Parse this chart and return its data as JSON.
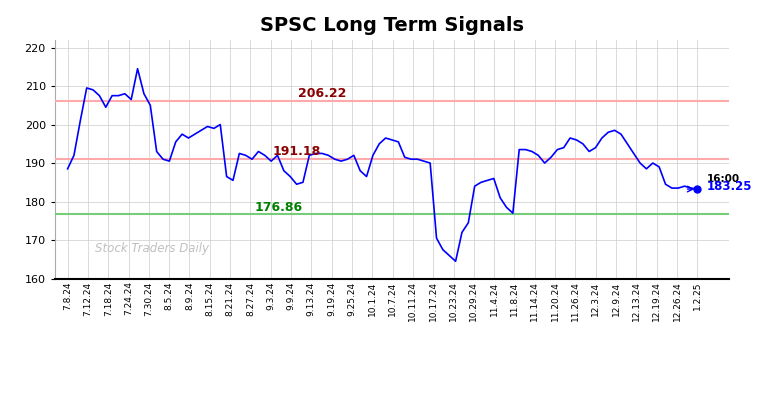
{
  "title": "SPSC Long Term Signals",
  "title_fontsize": 14,
  "title_fontweight": "bold",
  "ylim": [
    160,
    222
  ],
  "yticks": [
    160,
    170,
    180,
    190,
    200,
    210,
    220
  ],
  "line_color": "blue",
  "line_width": 1.2,
  "red_hline1": 206.22,
  "red_hline2": 191.18,
  "green_hline": 176.86,
  "red_hline_color": "#ffaaaa",
  "green_hline_color": "#77cc77",
  "label_206": "206.22",
  "label_191": "191.18",
  "label_176": "176.86",
  "label_end_time": "16:00",
  "label_end_price": "183.25",
  "watermark": "Stock Traders Daily",
  "background_color": "#ffffff",
  "grid_color": "#cccccc",
  "xtick_labels": [
    "7.8.24",
    "7.12.24",
    "7.18.24",
    "7.24.24",
    "7.30.24",
    "8.5.24",
    "8.9.24",
    "8.15.24",
    "8.21.24",
    "8.27.24",
    "9.3.24",
    "9.9.24",
    "9.13.24",
    "9.19.24",
    "9.25.24",
    "10.1.24",
    "10.7.24",
    "10.11.24",
    "10.17.24",
    "10.23.24",
    "10.29.24",
    "11.4.24",
    "11.8.24",
    "11.14.24",
    "11.20.24",
    "11.26.24",
    "12.3.24",
    "12.9.24",
    "12.13.24",
    "12.19.24",
    "12.26.24",
    "1.2.25"
  ],
  "prices": [
    188.5,
    192.0,
    201.0,
    209.5,
    209.0,
    207.5,
    204.5,
    207.5,
    207.5,
    208.0,
    206.5,
    214.5,
    208.0,
    205.0,
    193.0,
    191.0,
    190.5,
    195.5,
    197.5,
    196.5,
    197.5,
    198.5,
    199.5,
    199.0,
    200.0,
    186.5,
    185.5,
    192.5,
    192.0,
    191.0,
    193.0,
    192.0,
    190.5,
    192.0,
    188.0,
    186.5,
    184.5,
    185.0,
    192.0,
    192.5,
    192.5,
    192.0,
    191.0,
    190.5,
    191.0,
    192.0,
    188.0,
    186.5,
    192.0,
    195.0,
    196.5,
    196.0,
    195.5,
    191.5,
    191.0,
    191.0,
    190.5,
    190.0,
    170.5,
    167.5,
    166.0,
    164.5,
    172.0,
    174.5,
    184.0,
    185.0,
    185.5,
    186.0,
    181.0,
    178.5,
    177.0,
    193.5,
    193.5,
    193.0,
    192.0,
    190.0,
    191.5,
    193.5,
    194.0,
    196.5,
    196.0,
    195.0,
    193.0,
    194.0,
    196.5,
    198.0,
    198.5,
    197.5,
    195.0,
    192.5,
    190.0,
    188.5,
    190.0,
    189.0,
    184.5,
    183.5,
    183.5,
    184.0,
    183.5,
    183.25
  ],
  "fig_width": 7.84,
  "fig_height": 3.98,
  "dpi": 100
}
